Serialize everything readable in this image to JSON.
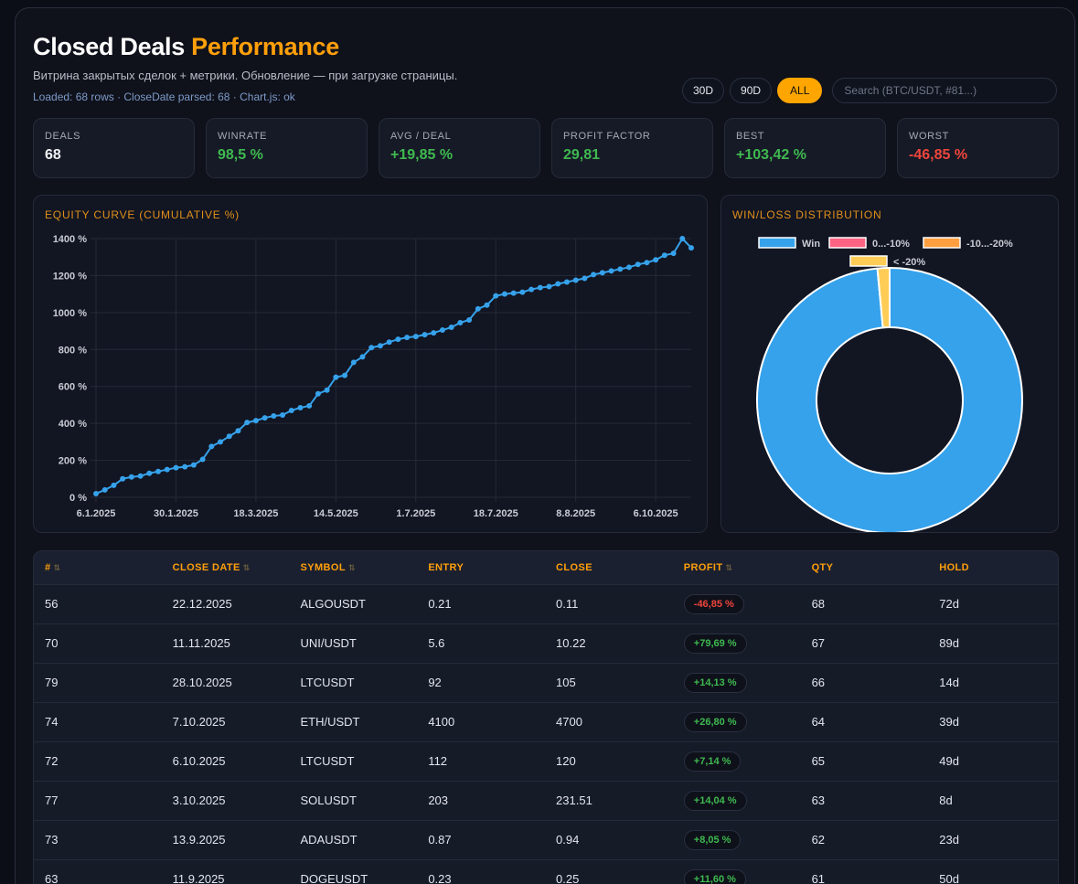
{
  "header": {
    "title_main": "Closed Deals",
    "title_accent": "Performance",
    "subtitle": "Витрина закрытых сделок + метрики. Обновление — при загрузке страницы.",
    "status": "Loaded: 68 rows · CloseDate parsed: 68 · Chart.js: ok"
  },
  "controls": {
    "ranges": [
      {
        "label": "30D",
        "active": false
      },
      {
        "label": "90D",
        "active": false
      },
      {
        "label": "ALL",
        "active": true
      }
    ],
    "search_placeholder": "Search (BTC/USDT, #81...)",
    "search_value": ""
  },
  "kpis": [
    {
      "label": "DEALS",
      "value": "68",
      "tone": "white"
    },
    {
      "label": "WINRATE",
      "value": "98,5 %",
      "tone": "green"
    },
    {
      "label": "AVG / DEAL",
      "value": "+19,85 %",
      "tone": "green"
    },
    {
      "label": "PROFIT FACTOR",
      "value": "29,81",
      "tone": "green"
    },
    {
      "label": "BEST",
      "value": "+103,42 %",
      "tone": "green"
    },
    {
      "label": "WORST",
      "value": "-46,85 %",
      "tone": "red"
    }
  ],
  "colors": {
    "accent": "#ff9f0a",
    "line": "#36a2eb",
    "win": "#36a2eb",
    "loss_0_10": "#ff6384",
    "loss_10_20": "#ff9f40",
    "loss_20": "#ffcd56",
    "positive": "#3fb950",
    "negative": "#f0453c"
  },
  "chart_data": [
    {
      "type": "line",
      "title": "EQUITY CURVE (CUMULATIVE %)",
      "xlabel": "",
      "ylabel": "",
      "ylim": [
        0,
        1400
      ],
      "yticks": [
        "0 %",
        "200 %",
        "400 %",
        "600 %",
        "800 %",
        "1000 %",
        "1200 %",
        "1400 %"
      ],
      "xtick_labels": [
        "6.1.2025",
        "30.1.2025",
        "18.3.2025",
        "14.5.2025",
        "1.7.2025",
        "18.7.2025",
        "8.8.2025",
        "6.10.2025"
      ],
      "xtick_indices": [
        0,
        9,
        18,
        27,
        36,
        45,
        54,
        63
      ],
      "grid": true,
      "series": [
        {
          "name": "Equity",
          "values": [
            20,
            40,
            65,
            100,
            110,
            115,
            130,
            140,
            150,
            160,
            165,
            175,
            205,
            275,
            300,
            330,
            360,
            405,
            415,
            430,
            440,
            445,
            470,
            485,
            495,
            560,
            580,
            650,
            660,
            730,
            760,
            810,
            820,
            840,
            855,
            865,
            870,
            880,
            890,
            905,
            920,
            945,
            960,
            1020,
            1040,
            1090,
            1100,
            1105,
            1110,
            1125,
            1135,
            1140,
            1155,
            1165,
            1175,
            1185,
            1205,
            1215,
            1225,
            1235,
            1245,
            1260,
            1270,
            1285,
            1310,
            1320,
            1400,
            1350
          ]
        }
      ]
    },
    {
      "type": "pie",
      "title": "WIN/LOSS DISTRIBUTION",
      "legend": "top",
      "categories": [
        "Win",
        "0...-10%",
        "-10...-20%",
        "< -20%"
      ],
      "values": [
        67,
        0,
        0,
        1
      ]
    }
  ],
  "table": {
    "columns": [
      {
        "label": "#",
        "sortable": true
      },
      {
        "label": "CLOSE DATE",
        "sortable": true
      },
      {
        "label": "SYMBOL",
        "sortable": true
      },
      {
        "label": "ENTRY",
        "sortable": false
      },
      {
        "label": "CLOSE",
        "sortable": false
      },
      {
        "label": "PROFIT",
        "sortable": true
      },
      {
        "label": "QTY",
        "sortable": false
      },
      {
        "label": "HOLD",
        "sortable": false
      }
    ],
    "sort_icon": "⇅",
    "rows": [
      {
        "id": "56",
        "date": "22.12.2025",
        "symbol": "ALGOUSDT",
        "entry": "0.21",
        "close": "0.11",
        "profit": "-46,85 %",
        "positive": false,
        "qty": "68",
        "hold": "72d"
      },
      {
        "id": "70",
        "date": "11.11.2025",
        "symbol": "UNI/USDT",
        "entry": "5.6",
        "close": "10.22",
        "profit": "+79,69 %",
        "positive": true,
        "qty": "67",
        "hold": "89d"
      },
      {
        "id": "79",
        "date": "28.10.2025",
        "symbol": "LTCUSDT",
        "entry": "92",
        "close": "105",
        "profit": "+14,13 %",
        "positive": true,
        "qty": "66",
        "hold": "14d"
      },
      {
        "id": "74",
        "date": "7.10.2025",
        "symbol": "ETH/USDT",
        "entry": "4100",
        "close": "4700",
        "profit": "+26,80 %",
        "positive": true,
        "qty": "64",
        "hold": "39d"
      },
      {
        "id": "72",
        "date": "6.10.2025",
        "symbol": "LTCUSDT",
        "entry": "112",
        "close": "120",
        "profit": "+7,14 %",
        "positive": true,
        "qty": "65",
        "hold": "49d"
      },
      {
        "id": "77",
        "date": "3.10.2025",
        "symbol": "SOLUSDT",
        "entry": "203",
        "close": "231.51",
        "profit": "+14,04 %",
        "positive": true,
        "qty": "63",
        "hold": "8d"
      },
      {
        "id": "73",
        "date": "13.9.2025",
        "symbol": "ADAUSDT",
        "entry": "0.87",
        "close": "0.94",
        "profit": "+8,05 %",
        "positive": true,
        "qty": "62",
        "hold": "23d"
      },
      {
        "id": "63",
        "date": "11.9.2025",
        "symbol": "DOGEUSDT",
        "entry": "0.23",
        "close": "0.25",
        "profit": "+11,60 %",
        "positive": true,
        "qty": "61",
        "hold": "50d"
      }
    ]
  }
}
